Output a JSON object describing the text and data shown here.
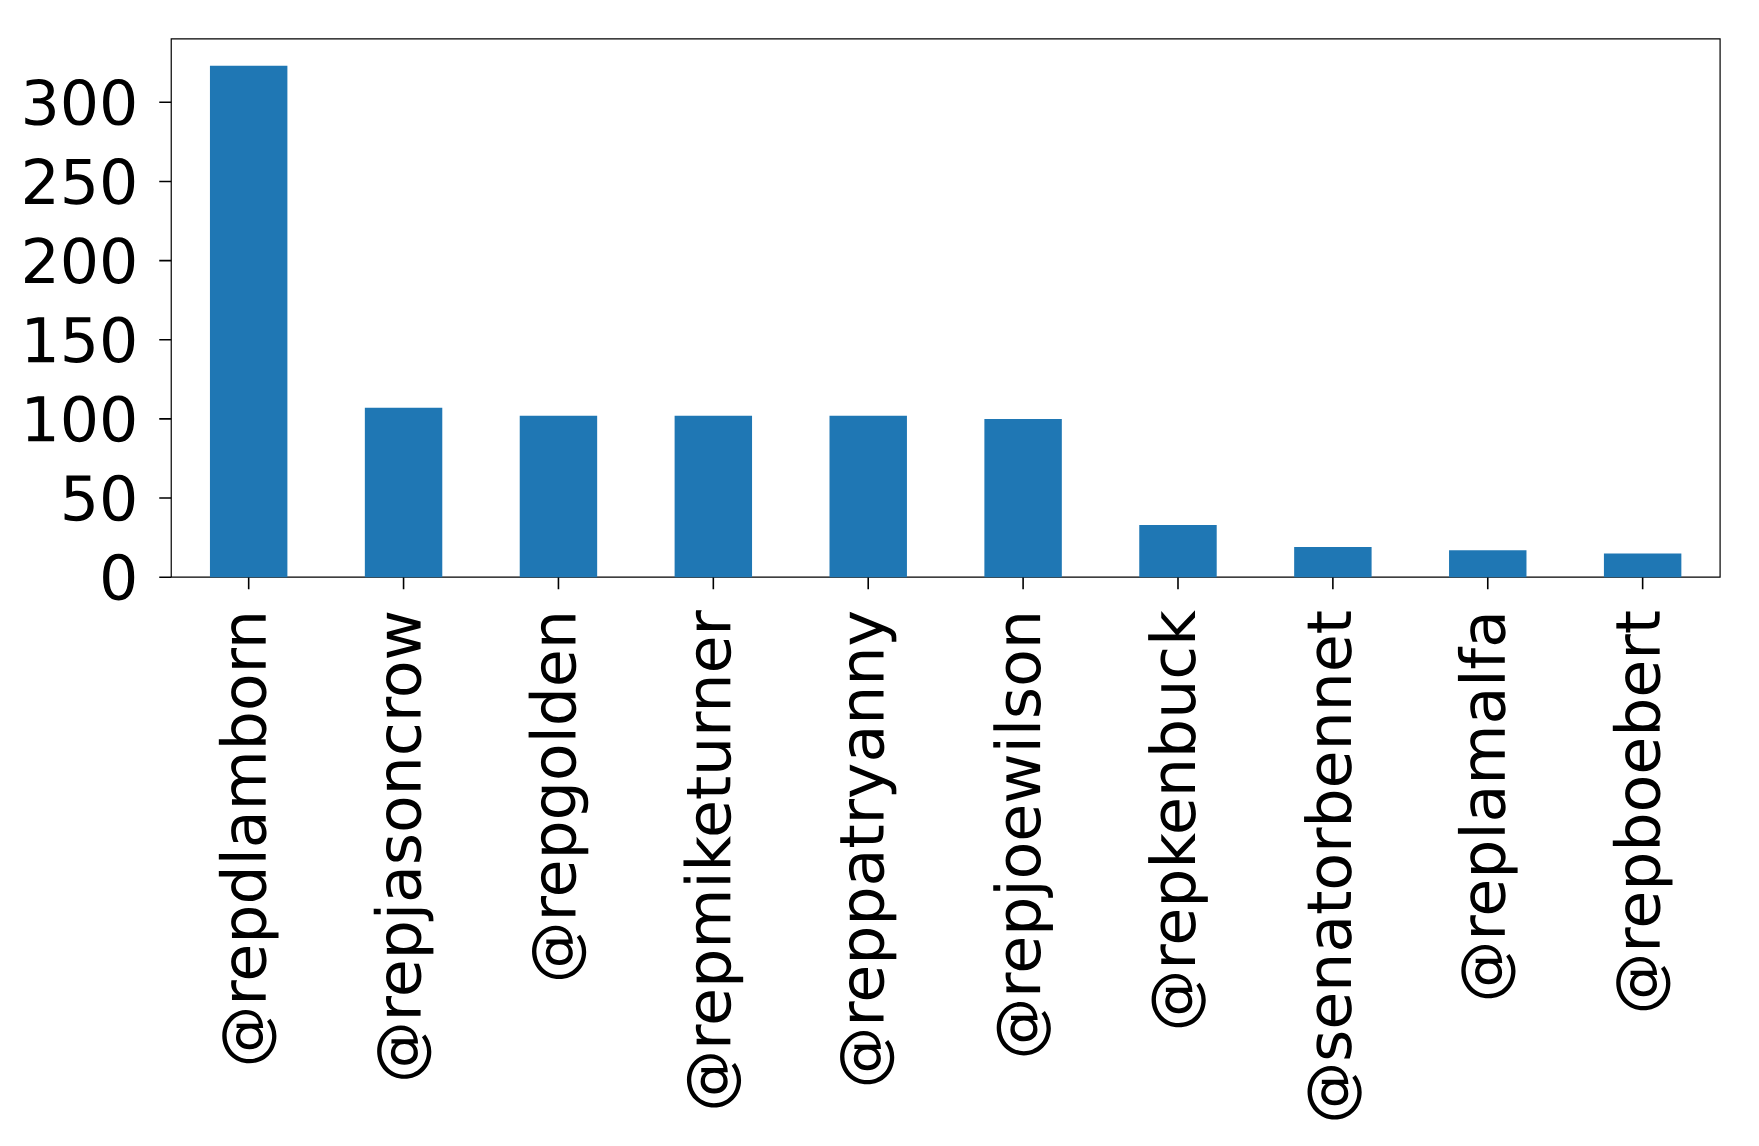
{
  "chart_data": {
    "type": "bar",
    "categories": [
      "@repdlamborn",
      "@repjasoncrow",
      "@repgolden",
      "@repmiketurner",
      "@reppatryanny",
      "@repjoewilson",
      "@repkenbuck",
      "@senatorbennet",
      "@replamalfa",
      "@repboebert"
    ],
    "values": [
      323,
      107,
      102,
      102,
      102,
      100,
      33,
      19,
      17,
      15
    ],
    "color": "#1f77b4",
    "ylim": [
      0,
      340
    ],
    "yticks": [
      0,
      50,
      100,
      150,
      200,
      250,
      300
    ],
    "grid": false
  }
}
